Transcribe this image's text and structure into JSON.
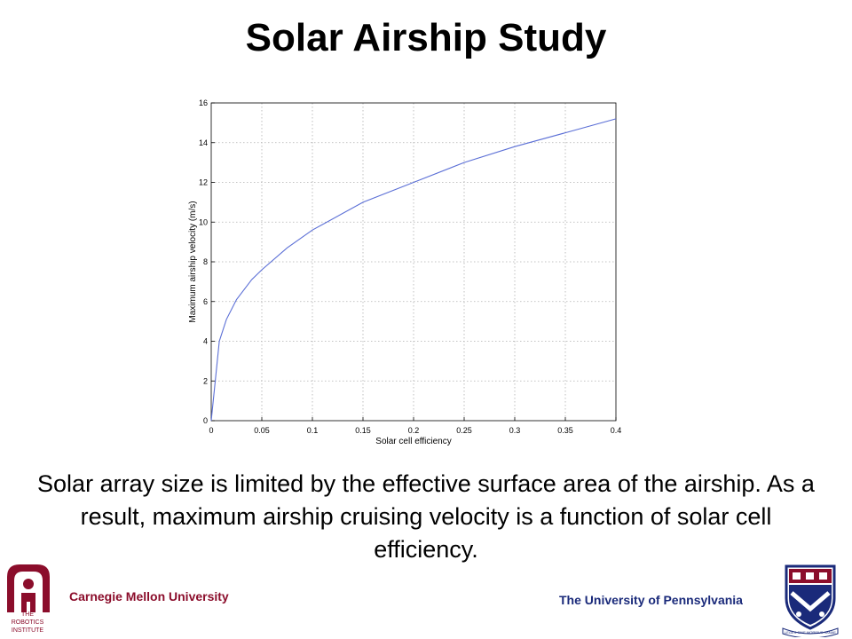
{
  "slide": {
    "title": "Solar Airship Study",
    "caption": "Solar array size is limited by the effective surface area of the airship.  As a result, maximum airship cruising velocity is a function of solar cell efficiency."
  },
  "footer": {
    "left_text": "Carnegie Mellon University",
    "right_text": "The University of Pennsylvania",
    "left_logo_text": [
      "THE",
      "ROBOTICS",
      "INSTITUTE"
    ],
    "penn_banner_text": "LEGES SINE MORIBUS VANAE"
  },
  "colors": {
    "line": "#5b6fd6",
    "cmu_red": "#8b0d2b",
    "penn_blue": "#1a2a7a"
  },
  "chart_data": {
    "type": "line",
    "title": "",
    "xlabel": "Solar cell efficiency",
    "ylabel": "Maximum airship velocity (m/s)",
    "xlim": [
      0,
      0.4
    ],
    "ylim": [
      0,
      16
    ],
    "xticks": [
      0,
      0.05,
      0.1,
      0.15,
      0.2,
      0.25,
      0.3,
      0.35,
      0.4
    ],
    "xtick_labels": [
      "0",
      "0.05",
      "0.1",
      "0.15",
      "0.2",
      "0.25",
      "0.3",
      "0.35",
      "0.4"
    ],
    "yticks": [
      0,
      2,
      4,
      6,
      8,
      10,
      12,
      14,
      16
    ],
    "ytick_labels": [
      "0",
      "2",
      "4",
      "6",
      "8",
      "10",
      "12",
      "14",
      "16"
    ],
    "grid": true,
    "series": [
      {
        "x": [
          0,
          0.008,
          0.015,
          0.025,
          0.04,
          0.05,
          0.075,
          0.1,
          0.15,
          0.2,
          0.25,
          0.3,
          0.35,
          0.4
        ],
        "y": [
          0,
          4.0,
          5.1,
          6.1,
          7.1,
          7.6,
          8.7,
          9.6,
          11.0,
          12.0,
          13.0,
          13.8,
          14.5,
          15.2
        ]
      }
    ]
  }
}
